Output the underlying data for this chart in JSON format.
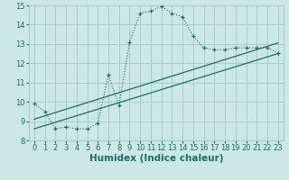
{
  "xlabel": "Humidex (Indice chaleur)",
  "xlim": [
    -0.5,
    23.5
  ],
  "ylim": [
    8,
    15
  ],
  "xticks": [
    0,
    1,
    2,
    3,
    4,
    5,
    6,
    7,
    8,
    9,
    10,
    11,
    12,
    13,
    14,
    15,
    16,
    17,
    18,
    19,
    20,
    21,
    22,
    23
  ],
  "yticks": [
    8,
    9,
    10,
    11,
    12,
    13,
    14,
    15
  ],
  "bg_color": "#cce8e4",
  "grid_color": "#aaccca",
  "line_color": "#1a6e64",
  "line1_x": [
    0,
    1,
    2,
    3,
    4,
    5,
    6,
    7,
    8,
    9,
    10,
    11,
    12,
    13,
    14,
    15,
    16,
    17,
    18,
    19,
    20,
    21,
    22,
    23
  ],
  "line1_y": [
    9.9,
    9.5,
    8.6,
    8.7,
    8.6,
    8.6,
    8.9,
    11.4,
    9.8,
    13.1,
    14.6,
    14.7,
    14.95,
    14.6,
    14.4,
    13.4,
    12.8,
    12.7,
    12.7,
    12.8,
    12.8,
    12.8,
    12.8,
    12.55
  ],
  "line2_x": [
    0,
    23
  ],
  "line2_y": [
    8.6,
    12.5
  ],
  "line3_x": [
    0,
    23
  ],
  "line3_y": [
    9.1,
    13.05
  ],
  "tick_fontsize": 6,
  "xlabel_fontsize": 7.5
}
